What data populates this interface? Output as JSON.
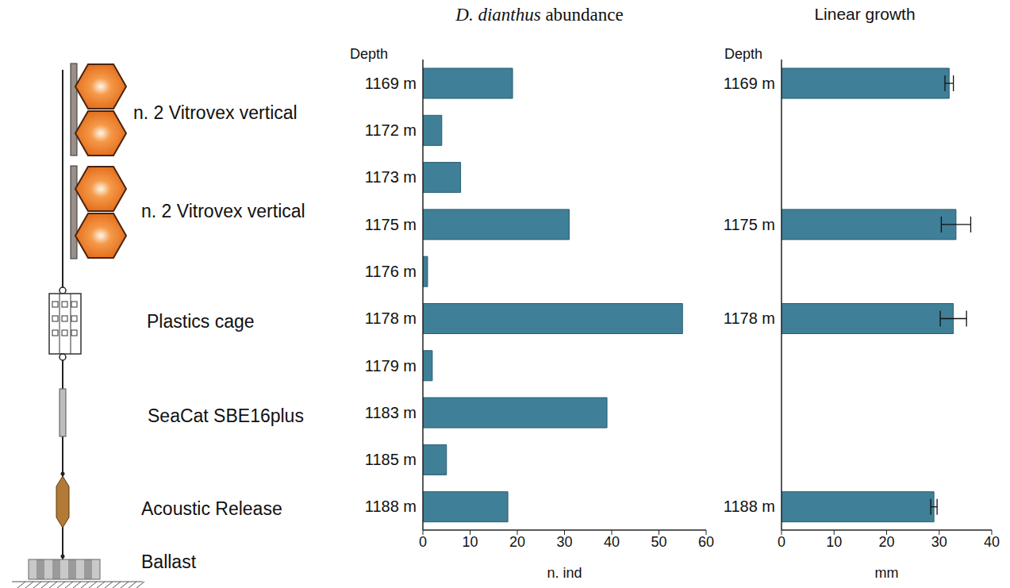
{
  "diagram": {
    "labels": [
      "n. 2 Vitrovex vertical",
      "n. 2 Vitrovex vertical",
      "Plastics cage",
      "SeaCat SBE16plus",
      "Acoustic Release",
      "Ballast"
    ]
  },
  "chart_data": [
    {
      "type": "bar",
      "orientation": "horizontal",
      "title": "D. dianthus abundance",
      "y_label": "Depth",
      "x_label": "n. ind",
      "categories": [
        "1169 m",
        "1172 m",
        "1173 m",
        "1175 m",
        "1176 m",
        "1178 m",
        "1179 m",
        "1183 m",
        "1185 m",
        "1188 m"
      ],
      "values": [
        19,
        4,
        8,
        31,
        1,
        55,
        2,
        39,
        5,
        18
      ],
      "color": "#3f7f98",
      "xlim": [
        0,
        60
      ],
      "xticks": [
        0,
        10,
        20,
        30,
        40,
        50,
        60
      ]
    },
    {
      "type": "bar",
      "orientation": "horizontal",
      "title": "Linear growth",
      "y_label": "Depth",
      "x_label": "mm",
      "categories": [
        "1169 m",
        null,
        null,
        "1175 m",
        null,
        "1178 m",
        null,
        null,
        null,
        "1188 m"
      ],
      "values": [
        31.9,
        null,
        null,
        33.2,
        null,
        32.7,
        null,
        null,
        null,
        29.0
      ],
      "errors": [
        0.8,
        null,
        null,
        2.8,
        null,
        2.5,
        null,
        null,
        null,
        0.6
      ],
      "color": "#3f7f98",
      "xlim": [
        0,
        40
      ],
      "xticks": [
        0,
        10,
        20,
        30,
        40
      ]
    }
  ]
}
